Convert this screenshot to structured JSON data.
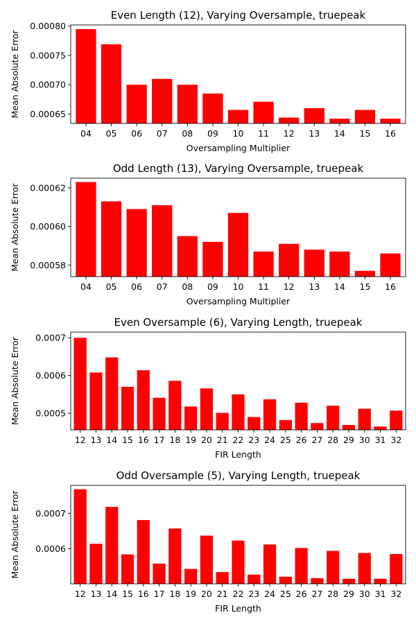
{
  "chart_data": [
    {
      "type": "bar",
      "title": "Even Length (12), Varying Oversample, truepeak",
      "xlabel": "Oversampling Multiplier",
      "ylabel": "Mean Absolute Error",
      "bar_color": "#ff0000",
      "categories": [
        "04",
        "05",
        "06",
        "07",
        "08",
        "09",
        "10",
        "11",
        "12",
        "13",
        "14",
        "15",
        "16"
      ],
      "values": [
        0.000795,
        0.000769,
        0.0007,
        0.00071,
        0.0007,
        0.000685,
        0.000657,
        0.000671,
        0.000644,
        0.00066,
        0.000642,
        0.000657,
        0.000642
      ],
      "ylim": [
        0.000634,
        0.000802
      ],
      "yticks": [
        0.00065,
        0.0007,
        0.00075,
        0.0008
      ],
      "ytick_labels": [
        "0.00065",
        "0.00070",
        "0.00075",
        "0.00080"
      ]
    },
    {
      "type": "bar",
      "title": "Odd Length (13), Varying Oversample, truepeak",
      "xlabel": "Oversampling Multiplier",
      "ylabel": "Mean Absolute Error",
      "bar_color": "#ff0000",
      "categories": [
        "04",
        "05",
        "06",
        "07",
        "08",
        "09",
        "10",
        "11",
        "12",
        "13",
        "14",
        "15",
        "16"
      ],
      "values": [
        0.000623,
        0.000613,
        0.000609,
        0.000611,
        0.000595,
        0.000592,
        0.000607,
        0.000587,
        0.000591,
        0.000588,
        0.000587,
        0.000577,
        0.000586
      ],
      "ylim": [
        0.000574,
        0.000625
      ],
      "yticks": [
        0.00058,
        0.0006,
        0.00062
      ],
      "ytick_labels": [
        "0.00058",
        "0.00060",
        "0.00062"
      ]
    },
    {
      "type": "bar",
      "title": "Even Oversample (6), Varying Length, truepeak",
      "xlabel": "FIR Length",
      "ylabel": "Mean Absolute Error",
      "bar_color": "#ff0000",
      "categories": [
        "12",
        "13",
        "14",
        "15",
        "16",
        "17",
        "18",
        "19",
        "20",
        "21",
        "22",
        "23",
        "24",
        "25",
        "26",
        "27",
        "28",
        "29",
        "30",
        "31",
        "32"
      ],
      "values": [
        0.0007,
        0.000608,
        0.000648,
        0.00057,
        0.000614,
        0.000541,
        0.000586,
        0.000518,
        0.000566,
        0.000501,
        0.00055,
        0.00049,
        0.000537,
        0.000482,
        0.000528,
        0.000474,
        0.00052,
        0.000469,
        0.000512,
        0.000465,
        0.000507
      ],
      "ylim": [
        0.000456,
        0.000715
      ],
      "yticks": [
        0.0005,
        0.0006,
        0.0007
      ],
      "ytick_labels": [
        "0.0005",
        "0.0006",
        "0.0007"
      ]
    },
    {
      "type": "bar",
      "title": "Odd Oversample (5), Varying Length, truepeak",
      "xlabel": "FIR Length",
      "ylabel": "Mean Absolute Error",
      "bar_color": "#ff0000",
      "categories": [
        "12",
        "13",
        "14",
        "15",
        "16",
        "17",
        "18",
        "19",
        "20",
        "21",
        "22",
        "23",
        "24",
        "25",
        "26",
        "27",
        "28",
        "29",
        "30",
        "31",
        "32"
      ],
      "values": [
        0.000768,
        0.000614,
        0.000718,
        0.000584,
        0.000681,
        0.000558,
        0.000657,
        0.000543,
        0.000637,
        0.000534,
        0.000623,
        0.000527,
        0.000612,
        0.000521,
        0.000602,
        0.000517,
        0.000594,
        0.000515,
        0.000588,
        0.000515,
        0.000585
      ],
      "ylim": [
        0.000501,
        0.000779
      ],
      "yticks": [
        0.0006,
        0.0007
      ],
      "ytick_labels": [
        "0.0006",
        "0.0007"
      ]
    }
  ]
}
